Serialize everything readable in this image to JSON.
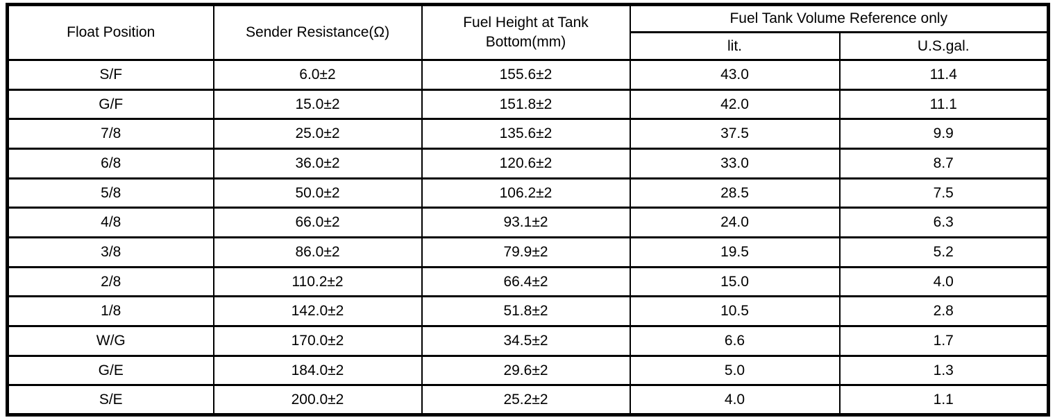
{
  "table": {
    "headers": {
      "float_position": "Float Position",
      "sender_resistance": "Sender Resistance(Ω)",
      "fuel_height": "Fuel Height at Tank Bottom(mm)",
      "volume_group": "Fuel Tank Volume Reference only",
      "volume_lit": "lit.",
      "volume_usgal": "U.S.gal."
    },
    "rows": [
      [
        "S/F",
        "6.0±2",
        "155.6±2",
        "43.0",
        "11.4"
      ],
      [
        "G/F",
        "15.0±2",
        "151.8±2",
        "42.0",
        "11.1"
      ],
      [
        "7/8",
        "25.0±2",
        "135.6±2",
        "37.5",
        "9.9"
      ],
      [
        "6/8",
        "36.0±2",
        "120.6±2",
        "33.0",
        "8.7"
      ],
      [
        "5/8",
        "50.0±2",
        "106.2±2",
        "28.5",
        "7.5"
      ],
      [
        "4/8",
        "66.0±2",
        "93.1±2",
        "24.0",
        "6.3"
      ],
      [
        "3/8",
        "86.0±2",
        "79.9±2",
        "19.5",
        "5.2"
      ],
      [
        "2/8",
        "110.2±2",
        "66.4±2",
        "15.0",
        "4.0"
      ],
      [
        "1/8",
        "142.0±2",
        "51.8±2",
        "10.5",
        "2.8"
      ],
      [
        "W/G",
        "170.0±2",
        "34.5±2",
        "6.6",
        "1.7"
      ],
      [
        "G/E",
        "184.0±2",
        "29.6±2",
        "5.0",
        "1.3"
      ],
      [
        "S/E",
        "200.0±2",
        "25.2±2",
        "4.0",
        "1.1"
      ]
    ]
  },
  "colors": {
    "border": "#000000",
    "text": "#000000",
    "background": "#ffffff"
  }
}
